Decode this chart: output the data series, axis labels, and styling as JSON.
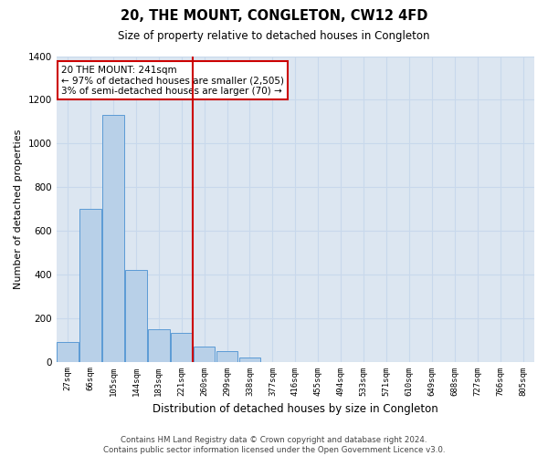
{
  "title": "20, THE MOUNT, CONGLETON, CW12 4FD",
  "subtitle": "Size of property relative to detached houses in Congleton",
  "xlabel": "Distribution of detached houses by size in Congleton",
  "ylabel": "Number of detached properties",
  "categories": [
    "27sqm",
    "66sqm",
    "105sqm",
    "144sqm",
    "183sqm",
    "221sqm",
    "260sqm",
    "299sqm",
    "338sqm",
    "377sqm",
    "416sqm",
    "455sqm",
    "494sqm",
    "533sqm",
    "571sqm",
    "610sqm",
    "649sqm",
    "688sqm",
    "727sqm",
    "766sqm",
    "805sqm"
  ],
  "bar_heights": [
    90,
    700,
    1130,
    420,
    150,
    130,
    70,
    50,
    20,
    0,
    0,
    0,
    0,
    0,
    0,
    0,
    0,
    0,
    0,
    0,
    0
  ],
  "bar_color": "#b8d0e8",
  "bar_edge_color": "#5b9bd5",
  "grid_color": "#c8d8ec",
  "background_color": "#dce6f1",
  "vline_x_index": 6.0,
  "vline_color": "#cc0000",
  "annotation_text": "20 THE MOUNT: 241sqm\n← 97% of detached houses are smaller (2,505)\n3% of semi-detached houses are larger (70) →",
  "annotation_box_color": "#ffffff",
  "annotation_box_edge": "#cc0000",
  "ylim": [
    0,
    1400
  ],
  "yticks": [
    0,
    200,
    400,
    600,
    800,
    1000,
    1200,
    1400
  ],
  "footer": "Contains HM Land Registry data © Crown copyright and database right 2024.\nContains public sector information licensed under the Open Government Licence v3.0."
}
